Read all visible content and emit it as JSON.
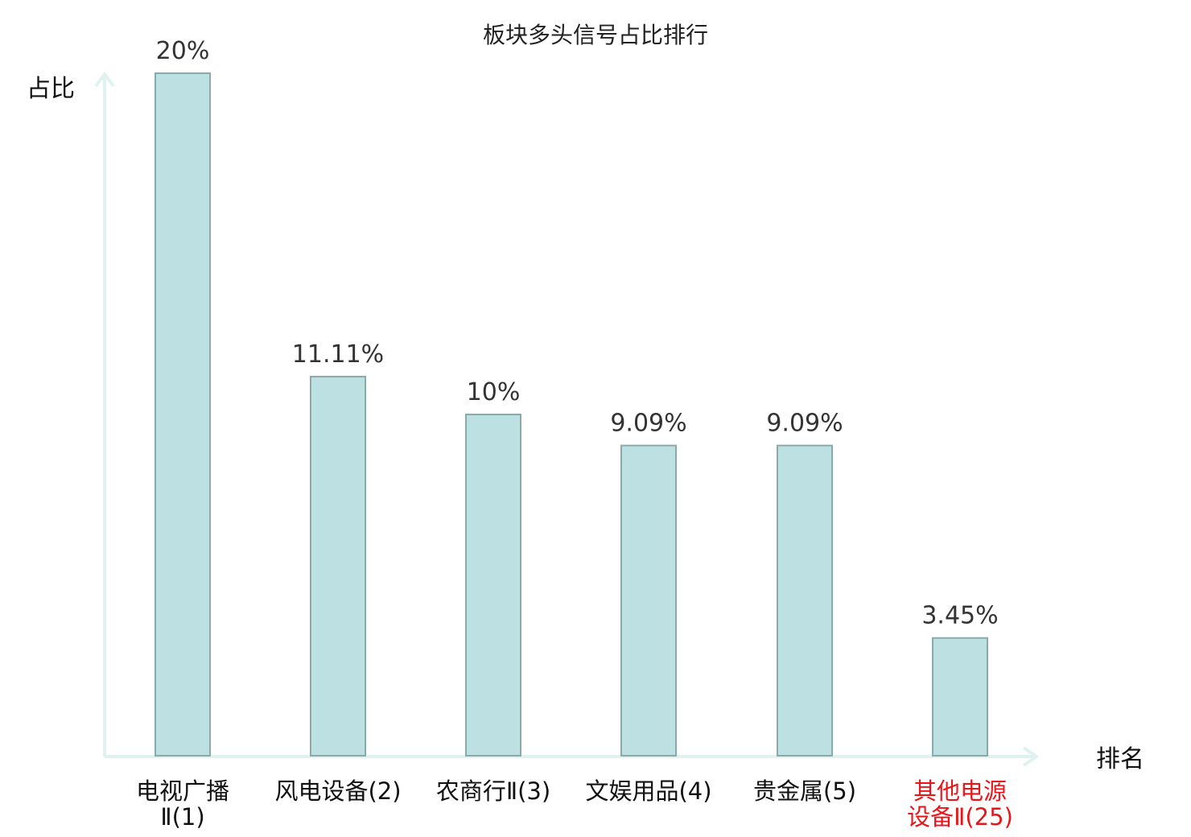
{
  "chart_data": {
    "type": "bar",
    "title": "板块多头信号占比排行",
    "ylabel": "占比",
    "xlabel": "排名",
    "ylim": [
      0,
      20
    ],
    "grid": false,
    "legend": "none",
    "categories": [
      {
        "name": "电视广播Ⅱ",
        "rank": "(1)",
        "lines": [
          "电视广播",
          "Ⅱ(1)"
        ],
        "highlight": false
      },
      {
        "name": "风电设备",
        "rank": "(2)",
        "lines": [
          "风电设备(2)"
        ],
        "highlight": false
      },
      {
        "name": "农商行Ⅱ",
        "rank": "(3)",
        "lines": [
          "农商行Ⅱ(3)"
        ],
        "highlight": false
      },
      {
        "name": "文娱用品",
        "rank": "(4)",
        "lines": [
          "文娱用品(4)"
        ],
        "highlight": false
      },
      {
        "name": "贵金属",
        "rank": "(5)",
        "lines": [
          "贵金属(5)"
        ],
        "highlight": false
      },
      {
        "name": "其他电源设备Ⅱ",
        "rank": "(25)",
        "lines": [
          "其他电源",
          "设备Ⅱ(25)"
        ],
        "highlight": true
      }
    ],
    "values": [
      20,
      11.11,
      10,
      9.09,
      9.09,
      3.45
    ],
    "value_labels": [
      "20%",
      "11.11%",
      "10%",
      "9.09%",
      "9.09%",
      "3.45%"
    ]
  },
  "colors": {
    "bar_fill": "#bde0e3",
    "bar_stroke": "#8aaaa9",
    "axis": "#e0f2f0",
    "highlight_text": "#e8161b",
    "text": "#111111"
  }
}
